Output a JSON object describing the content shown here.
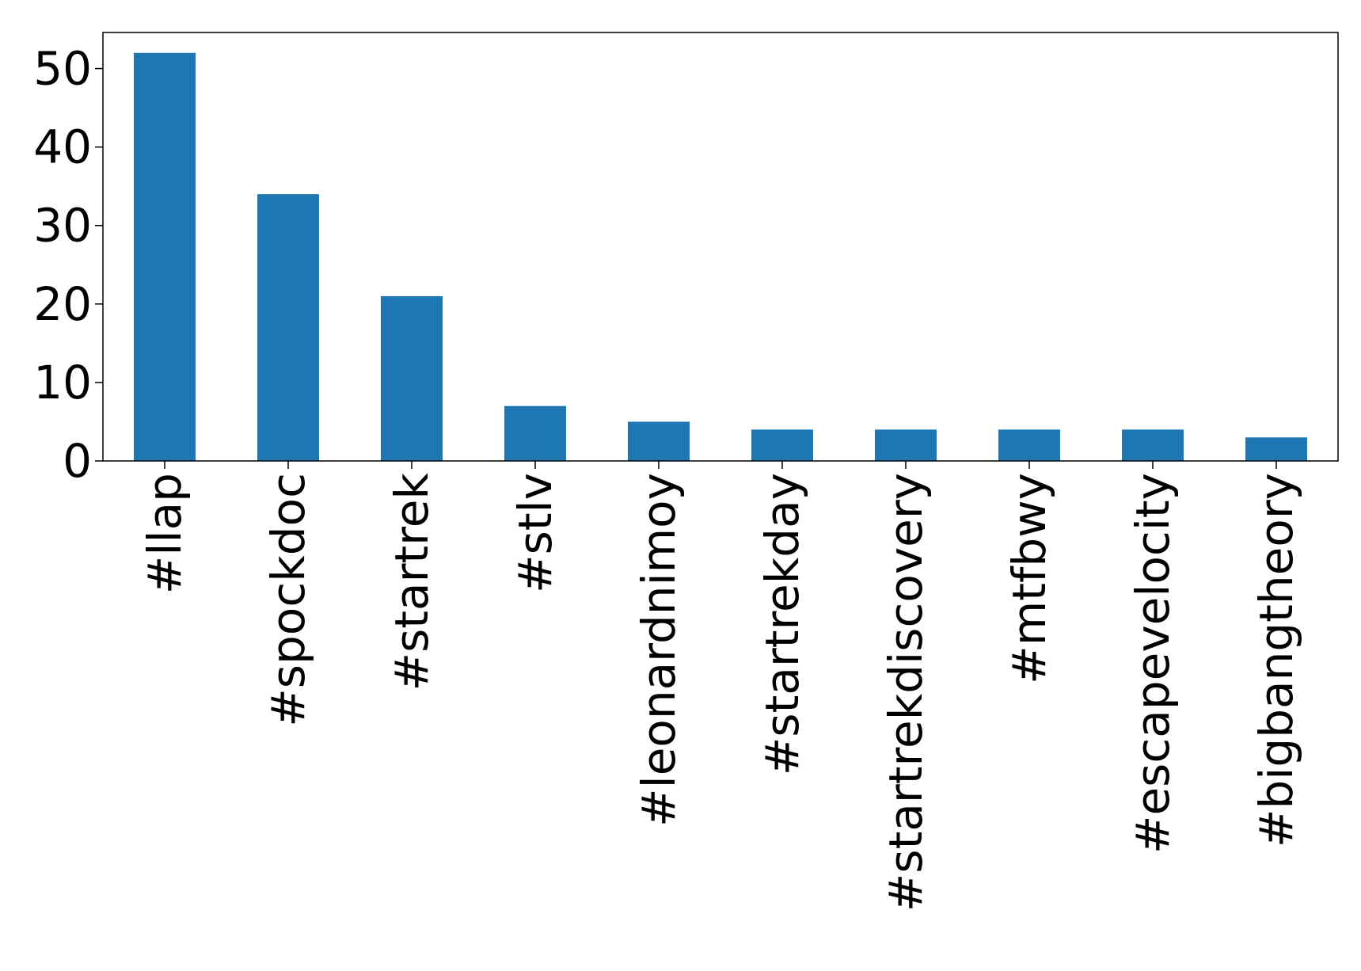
{
  "chart_data": {
    "type": "bar",
    "title": "",
    "xlabel": "",
    "ylabel": "",
    "categories": [
      "#llap",
      "#spockdoc",
      "#startrek",
      "#stlv",
      "#leonardnimoy",
      "#startrekday",
      "#startrekdiscovery",
      "#mtfbwy",
      "#escapevelocity",
      "#bigbangtheory"
    ],
    "values": [
      52,
      34,
      21,
      7,
      5,
      4,
      4,
      4,
      4,
      3
    ],
    "ylim": [
      0,
      54.6
    ],
    "yticks": [
      0,
      10,
      20,
      30,
      40,
      50
    ],
    "grid": false,
    "legend": "none",
    "bar_color": "#1f77b4"
  }
}
